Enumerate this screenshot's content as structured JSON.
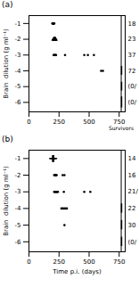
{
  "chart_data": [
    {
      "type": "scatter",
      "title": "(a)",
      "ylabel": "Brain  dilution (g ml⁻¹)",
      "xlim": [
        0,
        800
      ],
      "ylim": [
        -6.6,
        -0.5
      ],
      "xticks": [
        0,
        250,
        500,
        750
      ],
      "yticks": [
        -1,
        -2,
        -3,
        -4,
        -5,
        -6
      ],
      "series": [
        {
          "marker": "point",
          "color": "black",
          "x": [
            195,
            200,
            205,
            210,
            198,
            203,
            208
          ],
          "values": [
            -1,
            -1,
            -1,
            -1,
            -1,
            -1,
            -1
          ]
        },
        {
          "marker": "triangle_up",
          "color": "black",
          "x": [
            205,
            210,
            215,
            220,
            212,
            218
          ],
          "values": [
            -2,
            -2,
            -2,
            -2,
            -2,
            -2
          ]
        },
        {
          "marker": "point",
          "color": "black",
          "x": [
            205,
            210,
            215,
            220,
            225,
            300,
            460,
            490
          ],
          "values": [
            -3,
            -3,
            -3,
            -3,
            -3,
            -3,
            -3,
            -3
          ]
        },
        {
          "marker": "point",
          "color": "black",
          "x": [
            540
          ],
          "values": [
            -3
          ]
        },
        {
          "marker": "point",
          "color": "black",
          "x": [
            600,
            615
          ],
          "values": [
            -4,
            -4
          ]
        }
      ],
      "survivors": {
        "x": 770,
        "y": [
          -4,
          -5,
          -6
        ],
        "half": [
          0.28,
          0.28,
          0.35
        ],
        "color": "black"
      },
      "separator_x": 767,
      "survivors_label": "Survivors",
      "annotations": [
        {
          "text": "18",
          "y": -1
        },
        {
          "text": "23",
          "y": -2
        },
        {
          "text": "37",
          "y": -3
        },
        {
          "text": "72",
          "y": -4
        },
        {
          "text": "(0/",
          "y": -5
        },
        {
          "text": "(0/",
          "y": -6
        }
      ]
    },
    {
      "type": "scatter",
      "title": "(b)",
      "xlabel": "Time p.i. (days)",
      "ylabel": "Brain  dilution (g ml⁻¹)",
      "xlim": [
        0,
        800
      ],
      "ylim": [
        -6.6,
        -0.5
      ],
      "xticks": [
        0,
        250,
        500,
        750
      ],
      "yticks": [
        -1,
        -2,
        -3,
        -4,
        -5,
        -6
      ],
      "series": [
        {
          "marker": "plus",
          "color": "black",
          "x": [
            195,
            200,
            205,
            197,
            202,
            207
          ],
          "values": [
            -1,
            -1,
            -1,
            -1,
            -1,
            -1
          ]
        },
        {
          "marker": "point",
          "color": "black",
          "x": [
            210,
            215,
            220,
            225,
            230,
            280,
            295
          ],
          "values": [
            -2,
            -2,
            -2,
            -2,
            -2,
            -2,
            -2
          ]
        },
        {
          "marker": "point",
          "color": "black",
          "x": [
            210,
            215,
            220,
            225,
            230,
            235,
            240,
            290,
            460,
            510
          ],
          "values": [
            -3,
            -3,
            -3,
            -3,
            -3,
            -3,
            -3,
            -3,
            -3,
            -3
          ]
        },
        {
          "marker": "point",
          "color": "black",
          "x": [
            270,
            285,
            300,
            315
          ],
          "values": [
            -4,
            -4,
            -4,
            -4
          ]
        },
        {
          "marker": "point",
          "color": "black",
          "x": [
            295
          ],
          "values": [
            -5
          ]
        }
      ],
      "survivors": {
        "x": 770,
        "y": [
          -4,
          -5,
          -6
        ],
        "half": [
          0.28,
          0.28,
          0.28
        ],
        "color": "black"
      },
      "separator_x": 767,
      "annotations": [
        {
          "text": "14",
          "y": -1
        },
        {
          "text": "16",
          "y": -2
        },
        {
          "text": "21/",
          "y": -3
        },
        {
          "text": "22",
          "y": -4
        },
        {
          "text": "30",
          "y": -5
        },
        {
          "text": "(0/",
          "y": -6
        }
      ]
    }
  ]
}
